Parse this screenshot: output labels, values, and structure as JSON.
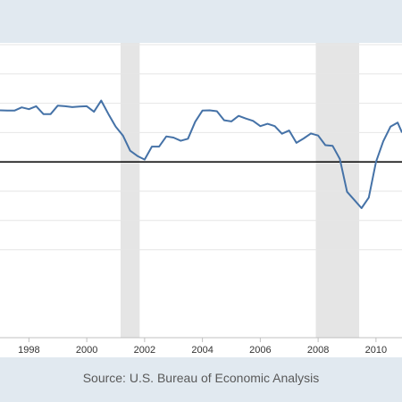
{
  "source_text": "Source: U.S. Bureau of Economic Analysis",
  "colors": {
    "line": "#4572a7",
    "recession": "#e5e5e5",
    "zero_line": "#000000",
    "grid": "#e6e6e6",
    "plot_background": "#ffffff",
    "page_background": "#e1e9f0"
  },
  "chart_data": {
    "type": "line",
    "title": "",
    "xlabel": "",
    "ylabel": "",
    "xlim": [
      1997.0,
      2010.9
    ],
    "ylim": [
      -6,
      4
    ],
    "grid": true,
    "recessions": [
      [
        2001.17,
        2001.83
      ],
      [
        2007.92,
        2009.42
      ]
    ],
    "x_ticks": [
      {
        "value": 1998,
        "label": "1998"
      },
      {
        "value": 2000,
        "label": "2000"
      },
      {
        "value": 2002,
        "label": "2002"
      },
      {
        "value": 2004,
        "label": "2004"
      },
      {
        "value": 2006,
        "label": "2006"
      },
      {
        "value": 2008,
        "label": "2008"
      },
      {
        "value": 2010,
        "label": "2010"
      }
    ],
    "y_gridlines": [
      4,
      3,
      2,
      1,
      -1,
      -2,
      -3
    ],
    "zero_line": 0,
    "series": [
      {
        "x": [
          1997.0,
          1997.25,
          1997.5,
          1997.75,
          1998.0,
          1998.25,
          1998.5,
          1998.75,
          1999.0,
          1999.25,
          1999.5,
          1999.75,
          2000.0,
          2000.25,
          2000.5,
          2000.75,
          2001.0,
          2001.25,
          2001.5,
          2001.75,
          2002.0,
          2002.25,
          2002.5,
          2002.75,
          2003.0,
          2003.25,
          2003.5,
          2003.75,
          2004.0,
          2004.25,
          2004.5,
          2004.75,
          2005.0,
          2005.25,
          2005.5,
          2005.75,
          2006.0,
          2006.25,
          2006.5,
          2006.75,
          2007.0,
          2007.25,
          2007.5,
          2007.75,
          2008.0,
          2008.25,
          2008.5,
          2008.75,
          2009.0,
          2009.25,
          2009.5,
          2009.75,
          2010.0,
          2010.25,
          2010.5,
          2010.75,
          2010.9
        ],
        "values": [
          1.76,
          1.75,
          1.75,
          1.86,
          1.8,
          1.9,
          1.63,
          1.63,
          1.92,
          1.9,
          1.87,
          1.89,
          1.9,
          1.71,
          2.09,
          1.63,
          1.2,
          0.9,
          0.38,
          0.2,
          0.08,
          0.52,
          0.52,
          0.87,
          0.83,
          0.72,
          0.79,
          1.37,
          1.75,
          1.76,
          1.73,
          1.42,
          1.38,
          1.57,
          1.48,
          1.4,
          1.22,
          1.3,
          1.22,
          0.96,
          1.07,
          0.65,
          0.8,
          0.97,
          0.9,
          0.57,
          0.55,
          0.1,
          -1.02,
          -1.3,
          -1.58,
          -1.22,
          0.0,
          0.7,
          1.2,
          1.34,
          1.0
        ]
      }
    ]
  }
}
